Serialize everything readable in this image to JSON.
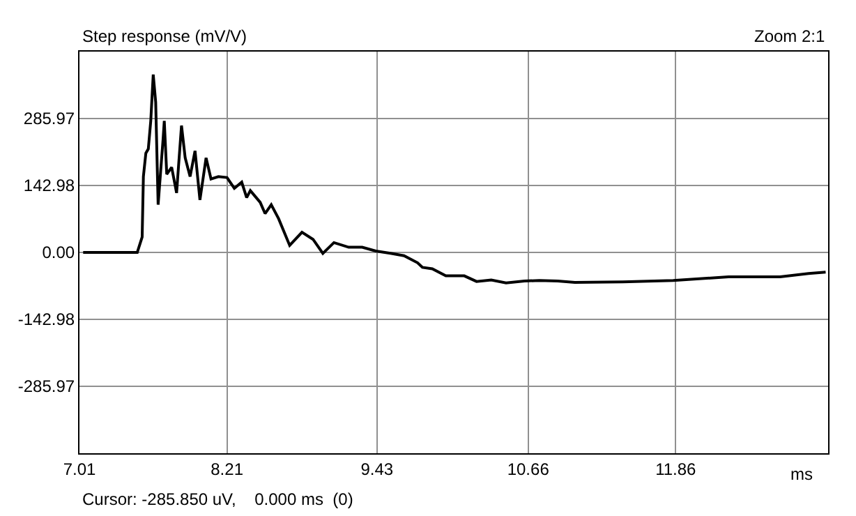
{
  "chart_data": {
    "type": "line",
    "title": "Step response (mV/V)",
    "xlabel": "ms",
    "annotations": [
      "Zoom 2:1",
      "Cursor: -285.850 uV,    0.000 ms  (0)"
    ],
    "x": [
      7.04,
      7.48,
      7.52,
      7.53,
      7.55,
      7.57,
      7.59,
      7.61,
      7.63,
      7.65,
      7.67,
      7.69,
      7.7,
      7.72,
      7.76,
      7.8,
      7.84,
      7.87,
      7.91,
      7.95,
      7.99,
      8.04,
      8.08,
      8.14,
      8.21,
      8.27,
      8.33,
      8.37,
      8.4,
      8.48,
      8.52,
      8.57,
      8.63,
      8.72,
      8.82,
      8.91,
      8.99,
      9.08,
      9.2,
      9.31,
      9.42,
      9.54,
      9.65,
      9.76,
      9.8,
      9.88,
      9.99,
      10.14,
      10.24,
      10.36,
      10.48,
      10.63,
      10.75,
      10.9,
      11.04,
      11.43,
      11.84,
      12.29,
      12.71,
      12.94,
      13.08
    ],
    "series": [
      {
        "color": "#000000",
        "values": [
          0,
          0,
          33,
          162,
          212,
          221,
          281,
          380,
          321,
          102,
          172,
          241,
          281,
          167,
          182,
          127,
          271,
          202,
          162,
          217,
          112,
          202,
          157,
          162,
          160,
          137,
          150,
          117,
          132,
          107,
          83,
          102,
          72,
          15,
          43,
          28,
          -2,
          21,
          11,
          11,
          3,
          -2,
          -7,
          -22,
          -32,
          -35,
          -50,
          -50,
          -62,
          -59,
          -65,
          -61,
          -60,
          -61,
          -64,
          -63,
          -60,
          -52,
          -52,
          -45,
          -42
        ]
      }
    ],
    "xlim": [
      7.01,
      13.1
    ],
    "xticks": [
      7.01,
      8.21,
      9.43,
      10.66,
      11.86
    ],
    "ylim": [
      -428.95,
      428.95
    ],
    "yticks": [
      -285.97,
      -142.98,
      {
        "value": 0,
        "label": "0.00"
      },
      142.98,
      285.97
    ],
    "grid": true,
    "marker": "none",
    "line_style": "solid"
  }
}
